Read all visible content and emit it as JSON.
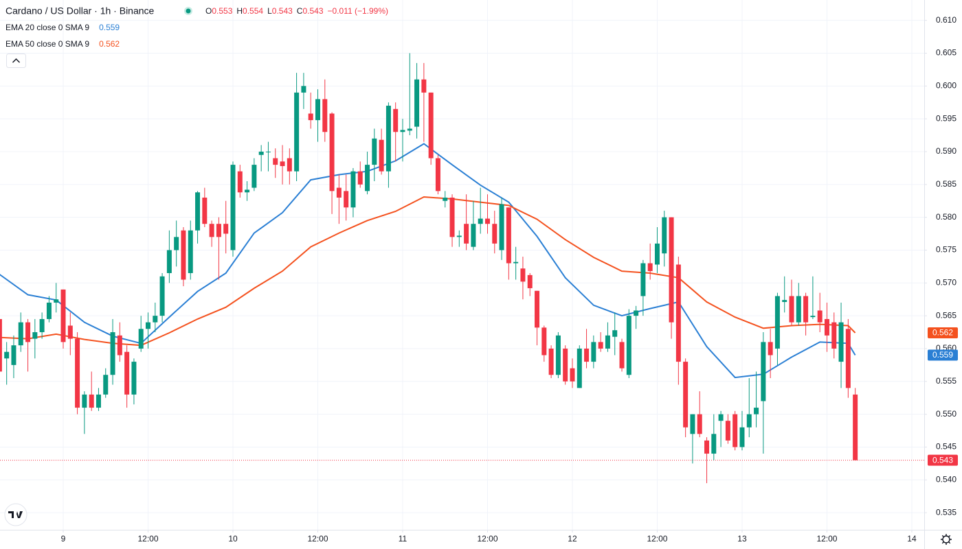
{
  "chart_data": {
    "type": "candlestick",
    "title": "Cardano / US Dollar · 1h · Binance",
    "ohlc": [
      {
        "label": "O",
        "value": "0.553"
      },
      {
        "label": "H",
        "value": "0.554"
      },
      {
        "label": "L",
        "value": "0.543"
      },
      {
        "label": "C",
        "value": "0.543"
      }
    ],
    "change": "−0.011 (−1.99%)",
    "last_price_label": "0.543",
    "up_color": "#089981",
    "down_color": "#f23645",
    "grid": true,
    "xlim": [
      8.6275,
      14.073
    ],
    "xticks": [
      9,
      {
        "value": 9.5,
        "label": "12:00"
      },
      10,
      {
        "value": 10.5,
        "label": "12:00"
      },
      11,
      {
        "value": 11.5,
        "label": "12:00"
      },
      12,
      {
        "value": 12.5,
        "label": "12:00"
      },
      13,
      {
        "value": 13.5,
        "label": "12:00"
      },
      14
    ],
    "ylim": [
      0.5324,
      0.6131
    ],
    "yticks": [
      0.535,
      {
        "value": 0.54,
        "label": "0.540"
      },
      0.545,
      {
        "value": 0.55,
        "label": "0.550"
      },
      0.555,
      {
        "value": 0.56,
        "label": "0.560"
      },
      0.565,
      {
        "value": 0.57,
        "label": "0.570"
      },
      0.575,
      {
        "value": 0.58,
        "label": "0.580"
      },
      0.585,
      {
        "value": 0.59,
        "label": "0.590"
      },
      0.595,
      {
        "value": 0.6,
        "label": "0.600"
      },
      0.605,
      {
        "value": 0.61,
        "label": "0.610"
      }
    ],
    "x": [
      8.625,
      8.6667,
      8.7083,
      8.75,
      8.7917,
      8.8333,
      8.875,
      8.9167,
      8.9583,
      9,
      9.0417,
      9.0833,
      9.125,
      9.1667,
      9.2083,
      9.25,
      9.2917,
      9.3333,
      9.375,
      9.4167,
      9.4583,
      9.5,
      9.5417,
      9.5833,
      9.625,
      9.6667,
      9.7083,
      9.75,
      9.7917,
      9.8333,
      9.875,
      9.9167,
      9.9583,
      10,
      10.0417,
      10.0833,
      10.125,
      10.1667,
      10.2083,
      10.25,
      10.2917,
      10.3333,
      10.375,
      10.4167,
      10.4583,
      10.5,
      10.5417,
      10.5833,
      10.625,
      10.6667,
      10.7083,
      10.75,
      10.7917,
      10.8333,
      10.875,
      10.9167,
      10.9583,
      11,
      11.0417,
      11.0833,
      11.125,
      11.1667,
      11.2083,
      11.25,
      11.2917,
      11.3333,
      11.375,
      11.4167,
      11.4583,
      11.5,
      11.5417,
      11.5833,
      11.625,
      11.6667,
      11.7083,
      11.75,
      11.7917,
      11.8333,
      11.875,
      11.9167,
      11.9583,
      12,
      12.0417,
      12.0833,
      12.125,
      12.1667,
      12.2083,
      12.25,
      12.2917,
      12.3333,
      12.375,
      12.4167,
      12.4583,
      12.5,
      12.5417,
      12.5833,
      12.625,
      12.6667,
      12.7083,
      12.75,
      12.7917,
      12.8333,
      12.875,
      12.9167,
      12.9583,
      13,
      13.0417,
      13.0833,
      13.125,
      13.1667,
      13.2083,
      13.25,
      13.2917,
      13.3333,
      13.375,
      13.4167,
      13.4583,
      13.5,
      13.5417,
      13.5833,
      13.625,
      13.6667
    ],
    "open": [
      0.5645,
      0.5585,
      0.5575,
      0.5605,
      0.564,
      0.5615,
      0.5625,
      0.5645,
      0.567,
      0.569,
      0.5635,
      0.5615,
      0.551,
      0.553,
      0.551,
      0.553,
      0.556,
      0.562,
      0.5595,
      0.553,
      0.56,
      0.563,
      0.564,
      0.565,
      0.5715,
      0.575,
      0.578,
      0.5715,
      0.578,
      0.583,
      0.579,
      0.579,
      0.579,
      0.575,
      0.587,
      0.5838,
      0.5845,
      0.5895,
      0.59,
      0.589,
      0.5885,
      0.589,
      0.587,
      0.599,
      0.5958,
      0.5948,
      0.598,
      0.5958,
      0.5845,
      0.584,
      0.5815,
      0.587,
      0.584,
      0.588,
      0.5918,
      0.587,
      0.5965,
      0.593,
      0.5932,
      0.5938,
      0.601,
      0.599,
      0.589,
      0.5825,
      0.583,
      0.577,
      0.579,
      0.5755,
      0.579,
      0.5798,
      0.579,
      0.575,
      0.5815,
      0.573,
      0.5722,
      0.5712,
      0.5688,
      0.5632,
      0.56,
      0.556,
      0.56,
      0.557,
      0.554,
      0.56,
      0.558,
      0.561,
      0.56,
      0.5618,
      0.561,
      0.556,
      0.565,
      0.568,
      0.573,
      0.5728,
      0.5745,
      0.58,
      0.5728,
      0.558,
      0.547,
      0.55,
      0.546,
      0.544,
      0.549,
      0.549,
      0.55,
      0.545,
      0.548,
      0.55,
      0.552,
      0.561,
      0.56,
      0.5671,
      0.568,
      0.564,
      0.568,
      0.5648,
      0.5658,
      0.5645,
      0.564,
      0.558,
      0.563,
      0.553
    ],
    "high": [
      0.5655,
      0.561,
      0.562,
      0.5655,
      0.5645,
      0.5645,
      0.5655,
      0.568,
      0.57,
      0.569,
      0.5655,
      0.5625,
      0.5535,
      0.5565,
      0.554,
      0.557,
      0.5645,
      0.564,
      0.5605,
      0.5585,
      0.565,
      0.5655,
      0.567,
      0.5715,
      0.578,
      0.5795,
      0.5785,
      0.5795,
      0.584,
      0.5845,
      0.5795,
      0.58,
      0.5825,
      0.5885,
      0.588,
      0.5855,
      0.589,
      0.591,
      0.5915,
      0.5905,
      0.591,
      0.5905,
      0.602,
      0.602,
      0.599,
      0.5995,
      0.601,
      0.596,
      0.5865,
      0.5865,
      0.5875,
      0.5885,
      0.59,
      0.5935,
      0.5935,
      0.5975,
      0.5975,
      0.595,
      0.605,
      0.6035,
      0.6035,
      0.599,
      0.5895,
      0.584,
      0.5835,
      0.578,
      0.5835,
      0.5825,
      0.5845,
      0.5835,
      0.581,
      0.583,
      0.5815,
      0.5755,
      0.574,
      0.5715,
      0.5688,
      0.5635,
      0.5605,
      0.5625,
      0.5605,
      0.5585,
      0.5605,
      0.563,
      0.562,
      0.5625,
      0.564,
      0.5655,
      0.5615,
      0.566,
      0.5665,
      0.5735,
      0.576,
      0.5785,
      0.581,
      0.58,
      0.574,
      0.5585,
      0.55,
      0.5535,
      0.5465,
      0.55,
      0.5505,
      0.55,
      0.5505,
      0.5505,
      0.5555,
      0.5565,
      0.5625,
      0.563,
      0.5685,
      0.571,
      0.5705,
      0.57,
      0.5685,
      0.571,
      0.5685,
      0.567,
      0.5655,
      0.567,
      0.5645,
      0.554
    ],
    "low": [
      0.554,
      0.5545,
      0.5555,
      0.5595,
      0.5565,
      0.5585,
      0.5615,
      0.564,
      0.5655,
      0.56,
      0.559,
      0.55,
      0.547,
      0.5505,
      0.5505,
      0.5525,
      0.5545,
      0.558,
      0.551,
      0.5515,
      0.5595,
      0.56,
      0.5625,
      0.564,
      0.57,
      0.5725,
      0.5695,
      0.5705,
      0.576,
      0.5785,
      0.5755,
      0.5705,
      0.5745,
      0.574,
      0.583,
      0.5825,
      0.584,
      0.587,
      0.587,
      0.586,
      0.585,
      0.585,
      0.5855,
      0.5965,
      0.5935,
      0.5915,
      0.5915,
      0.5805,
      0.579,
      0.5795,
      0.58,
      0.5845,
      0.5835,
      0.5855,
      0.5865,
      0.5845,
      0.5885,
      0.5885,
      0.5925,
      0.592,
      0.5915,
      0.588,
      0.5835,
      0.5815,
      0.5755,
      0.5755,
      0.575,
      0.575,
      0.5775,
      0.5775,
      0.5745,
      0.5735,
      0.5705,
      0.5705,
      0.5675,
      0.568,
      0.5605,
      0.558,
      0.5555,
      0.5555,
      0.5545,
      0.554,
      0.554,
      0.557,
      0.557,
      0.5595,
      0.5595,
      0.559,
      0.5565,
      0.5555,
      0.563,
      0.565,
      0.5705,
      0.5715,
      0.5725,
      0.5615,
      0.5545,
      0.5465,
      0.5425,
      0.5465,
      0.5395,
      0.543,
      0.545,
      0.5455,
      0.5445,
      0.5445,
      0.5465,
      0.548,
      0.544,
      0.5555,
      0.5575,
      0.5655,
      0.5635,
      0.5635,
      0.562,
      0.5645,
      0.5625,
      0.5595,
      0.5585,
      0.554,
      0.5525,
      0.543
    ],
    "close": [
      0.5565,
      0.5595,
      0.5605,
      0.564,
      0.561,
      0.5625,
      0.5645,
      0.567,
      0.5675,
      0.561,
      0.5615,
      0.551,
      0.553,
      0.551,
      0.553,
      0.556,
      0.5625,
      0.559,
      0.553,
      0.558,
      0.563,
      0.564,
      0.565,
      0.571,
      0.575,
      0.577,
      0.5705,
      0.578,
      0.5838,
      0.579,
      0.577,
      0.577,
      0.5775,
      0.588,
      0.5838,
      0.5842,
      0.588,
      0.59,
      0.59,
      0.588,
      0.5878,
      0.587,
      0.599,
      0.6,
      0.5948,
      0.598,
      0.593,
      0.584,
      0.583,
      0.5815,
      0.587,
      0.585,
      0.588,
      0.592,
      0.587,
      0.597,
      0.593,
      0.5933,
      0.5935,
      0.601,
      0.599,
      0.589,
      0.584,
      0.583,
      0.577,
      0.5772,
      0.576,
      0.579,
      0.5798,
      0.579,
      0.576,
      0.582,
      0.573,
      0.5732,
      0.5702,
      0.5692,
      0.5632,
      0.559,
      0.556,
      0.562,
      0.555,
      0.555,
      0.56,
      0.558,
      0.561,
      0.56,
      0.562,
      0.5628,
      0.557,
      0.565,
      0.5658,
      0.573,
      0.5718,
      0.576,
      0.58,
      0.564,
      0.558,
      0.548,
      0.55,
      0.547,
      0.544,
      0.547,
      0.55,
      0.546,
      0.545,
      0.548,
      0.55,
      0.551,
      0.561,
      0.559,
      0.568,
      0.5674,
      0.564,
      0.568,
      0.564,
      0.565,
      0.564,
      0.562,
      0.56,
      0.564,
      0.554,
      0.543
    ],
    "series": [
      {
        "name": "EMA 20 close 0 SMA 9",
        "color": "#2a7fd4",
        "last_label": "0.559",
        "x": [
          8.625,
          8.7917,
          8.9583,
          9.125,
          9.2917,
          9.4583,
          9.625,
          9.7917,
          9.9583,
          10.125,
          10.2917,
          10.4583,
          10.625,
          10.7917,
          10.9583,
          11.125,
          11.2917,
          11.4583,
          11.625,
          11.7917,
          11.9583,
          12.125,
          12.2917,
          12.4583,
          12.625,
          12.7917,
          12.9583,
          13.125,
          13.2917,
          13.4583,
          13.625,
          13.6667
        ],
        "values": [
          0.5713,
          0.5682,
          0.5674,
          0.564,
          0.5619,
          0.5608,
          0.5648,
          0.5687,
          0.5715,
          0.5776,
          0.5807,
          0.5857,
          0.5865,
          0.587,
          0.5886,
          0.5912,
          0.588,
          0.5849,
          0.5823,
          0.5771,
          0.5708,
          0.5666,
          0.565,
          0.5661,
          0.5671,
          0.5603,
          0.5556,
          0.5561,
          0.5587,
          0.561,
          0.5608,
          0.559
        ]
      },
      {
        "name": "EMA 50 close 0 SMA 9",
        "color": "#f4511e",
        "last_label": "0.562",
        "x": [
          8.625,
          8.7917,
          8.9583,
          9.125,
          9.2917,
          9.4583,
          9.625,
          9.7917,
          9.9583,
          10.125,
          10.2917,
          10.4583,
          10.625,
          10.7917,
          10.9583,
          11.125,
          11.2917,
          11.4583,
          11.625,
          11.7917,
          11.9583,
          12.125,
          12.2917,
          12.4583,
          12.625,
          12.7917,
          12.9583,
          13.125,
          13.2917,
          13.4583,
          13.625,
          13.6667
        ],
        "values": [
          0.5617,
          0.5615,
          0.5622,
          0.5614,
          0.5608,
          0.5605,
          0.5624,
          0.5645,
          0.5663,
          0.5692,
          0.5718,
          0.5755,
          0.5776,
          0.5795,
          0.5809,
          0.5831,
          0.5828,
          0.5823,
          0.5818,
          0.5797,
          0.5766,
          0.5739,
          0.5718,
          0.5715,
          0.5708,
          0.5671,
          0.5648,
          0.5631,
          0.5635,
          0.5637,
          0.5635,
          0.5624
        ]
      }
    ]
  }
}
